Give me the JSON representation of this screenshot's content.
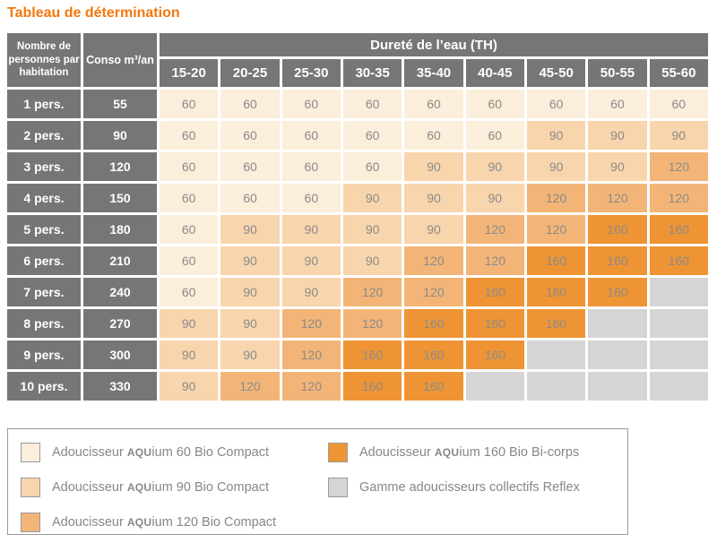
{
  "title": "Tableau de détermination",
  "colors": {
    "capacity_60": "#fbeedb",
    "capacity_90": "#f8d5ac",
    "capacity_120": "#f3b577",
    "capacity_160": "#ef9434",
    "collective_gray": "#d5d5d5",
    "header_bg": "#767676",
    "title_orange": "#f2770b"
  },
  "table": {
    "header_persons": "Nombre de personnes par habitation",
    "header_conso": "Conso m³/an",
    "header_hardness": "Dureté de l’eau (TH)",
    "ranges": [
      "15-20",
      "20-25",
      "25-30",
      "30-35",
      "35-40",
      "40-45",
      "45-50",
      "50-55",
      "55-60"
    ],
    "rows": [
      {
        "persons": "1 pers.",
        "conso": "55",
        "values": [
          "60",
          "60",
          "60",
          "60",
          "60",
          "60",
          "60",
          "60",
          "60"
        ]
      },
      {
        "persons": "2 pers.",
        "conso": "90",
        "values": [
          "60",
          "60",
          "60",
          "60",
          "60",
          "60",
          "90",
          "90",
          "90"
        ]
      },
      {
        "persons": "3 pers.",
        "conso": "120",
        "values": [
          "60",
          "60",
          "60",
          "60",
          "90",
          "90",
          "90",
          "90",
          "120"
        ]
      },
      {
        "persons": "4 pers.",
        "conso": "150",
        "values": [
          "60",
          "60",
          "60",
          "90",
          "90",
          "90",
          "120",
          "120",
          "120"
        ]
      },
      {
        "persons": "5 pers.",
        "conso": "180",
        "values": [
          "60",
          "90",
          "90",
          "90",
          "90",
          "120",
          "120",
          "160",
          "160"
        ]
      },
      {
        "persons": "6 pers.",
        "conso": "210",
        "values": [
          "60",
          "90",
          "90",
          "90",
          "120",
          "120",
          "160",
          "160",
          "160"
        ]
      },
      {
        "persons": "7 pers.",
        "conso": "240",
        "values": [
          "60",
          "90",
          "90",
          "120",
          "120",
          "160",
          "160",
          "160",
          ""
        ]
      },
      {
        "persons": "8 pers.",
        "conso": "270",
        "values": [
          "90",
          "90",
          "120",
          "120",
          "160",
          "160",
          "160",
          "",
          ""
        ]
      },
      {
        "persons": "9 pers.",
        "conso": "300",
        "values": [
          "90",
          "90",
          "120",
          "160",
          "160",
          "160",
          "",
          "",
          ""
        ]
      },
      {
        "persons": "10 pers.",
        "conso": "330",
        "values": [
          "90",
          "120",
          "120",
          "160",
          "160",
          "",
          "",
          "",
          ""
        ]
      }
    ]
  },
  "legend": {
    "items": [
      {
        "color_key": "capacity_60",
        "prefix": "Adoucisseur ",
        "brand_bold": "AQU",
        "brand_rest": "ium",
        "suffix": " 60 Bio Compact"
      },
      {
        "color_key": "capacity_90",
        "prefix": "Adoucisseur ",
        "brand_bold": "AQU",
        "brand_rest": "ium",
        "suffix": " 90 Bio Compact"
      },
      {
        "color_key": "capacity_120",
        "prefix": "Adoucisseur ",
        "brand_bold": "AQU",
        "brand_rest": "ium",
        "suffix": " 120 Bio Compact"
      },
      {
        "color_key": "capacity_160",
        "prefix": "Adoucisseur ",
        "brand_bold": "AQU",
        "brand_rest": "ium",
        "suffix": " 160 Bio Bi-corps"
      },
      {
        "color_key": "collective_gray",
        "prefix": "Gamme adoucisseurs collectifs Reflex",
        "brand_bold": "",
        "brand_rest": "",
        "suffix": ""
      }
    ]
  }
}
